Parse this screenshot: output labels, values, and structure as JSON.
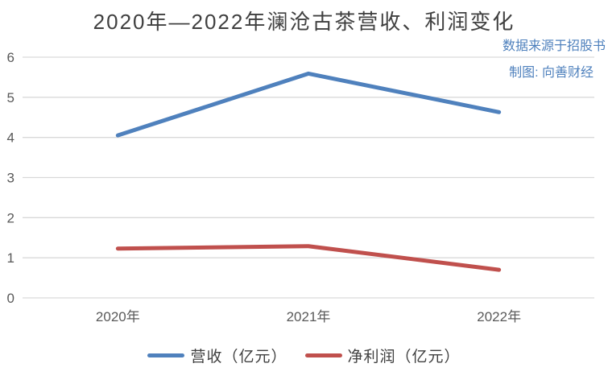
{
  "title": "2020年—2022年澜沧古茶营收、利润变化",
  "source": {
    "line1": "数据来源于招股书",
    "line2": "制图: 向善财经",
    "text_color": "#4f81bd"
  },
  "chart_data": {
    "type": "line",
    "categories": [
      "2020年",
      "2021年",
      "2022年"
    ],
    "series": [
      {
        "name": "营收（亿元）",
        "values": [
          4.05,
          5.59,
          4.63
        ],
        "color": "#4f81bd"
      },
      {
        "name": "净利润（亿元）",
        "values": [
          1.23,
          1.29,
          0.7
        ],
        "color": "#c0504d"
      }
    ],
    "ylim": [
      0,
      6
    ],
    "yticks": [
      0,
      1,
      2,
      3,
      4,
      5,
      6
    ],
    "grid": true,
    "gridline_color": "#d9d9d9",
    "tick_label_color": "#595959",
    "legend_position": "bottom",
    "line_width": 5
  }
}
